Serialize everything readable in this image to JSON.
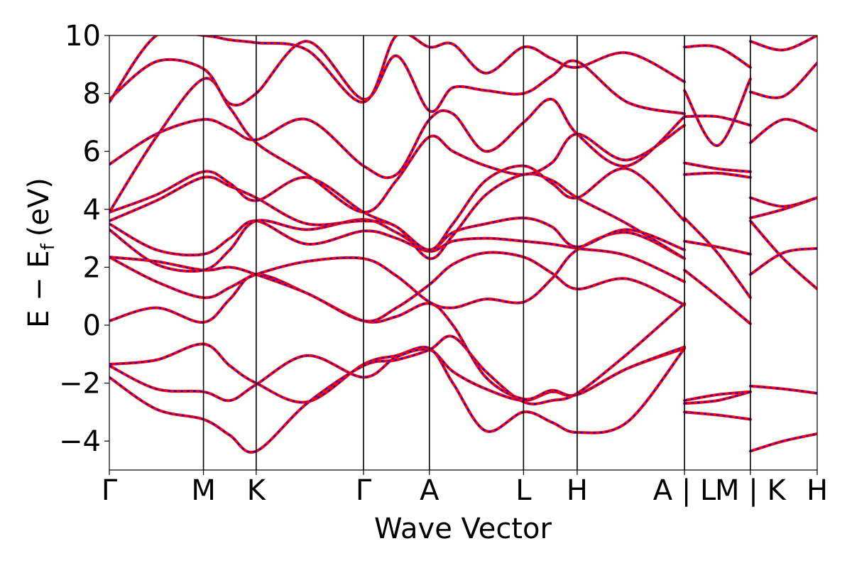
{
  "chart_data": {
    "type": "line",
    "title": "",
    "xlabel": "Wave Vector",
    "ylabel": "E − E",
    "ylabel_sub": "f",
    "ylabel_unit": "(eV)",
    "ylim": [
      -5,
      10
    ],
    "xlim": [
      0,
      7.52
    ],
    "yticks": [
      -4,
      -2,
      0,
      2,
      4,
      6,
      8,
      10
    ],
    "ytick_labels": [
      "−4",
      "−2",
      "0",
      "2",
      "4",
      "6",
      "8",
      "10"
    ],
    "kpath": [
      {
        "label": "Γ",
        "x": 0.0
      },
      {
        "label": "M",
        "x": 1.0
      },
      {
        "label": "K",
        "x": 1.56
      },
      {
        "label": "Γ",
        "x": 2.7
      },
      {
        "label": "A",
        "x": 3.4
      },
      {
        "label": "L",
        "x": 4.4
      },
      {
        "label": "H",
        "x": 4.97
      },
      {
        "label": "A | L",
        "x": 6.11
      },
      {
        "label": "M | K",
        "x": 6.81
      },
      {
        "label": "H",
        "x": 7.52
      }
    ],
    "grid": false,
    "legend": "none",
    "line_colors": {
      "primary": "#ff0000",
      "overlay": "#0000ff"
    },
    "series": [
      {
        "x": [
          0,
          0.5,
          1.0,
          1.28,
          1.56,
          2.1,
          2.7,
          3.05,
          3.4,
          3.65,
          4.0,
          4.4,
          4.7,
          4.97,
          5.5,
          6.11
        ],
        "values": [
          -1.35,
          -1.2,
          -0.65,
          -1.4,
          -2.0,
          -2.65,
          -1.35,
          -1.05,
          -0.8,
          -2.0,
          -3.65,
          -3.0,
          -3.35,
          -3.7,
          -3.35,
          -0.8
        ]
      },
      {
        "x": [
          0,
          0.5,
          1.0,
          1.28,
          1.56,
          2.1,
          2.7,
          3.05,
          3.4,
          3.65,
          4.0,
          4.4,
          4.7,
          4.97,
          5.5,
          6.11
        ],
        "values": [
          -1.4,
          -2.2,
          -2.3,
          -2.6,
          -2.05,
          -1.05,
          -1.8,
          -1.1,
          -0.85,
          -1.6,
          -2.2,
          -2.6,
          -2.3,
          -2.4,
          -1.5,
          -0.8
        ]
      },
      {
        "x": [
          0,
          0.5,
          1.0,
          1.28,
          1.56,
          2.1,
          2.7,
          3.05,
          3.4,
          3.65,
          4.0,
          4.4,
          4.7,
          4.97,
          5.5,
          6.11
        ],
        "values": [
          -1.8,
          -2.9,
          -3.25,
          -3.8,
          -4.35,
          -2.7,
          -1.4,
          -1.2,
          -0.85,
          -0.4,
          -1.6,
          -2.65,
          -2.6,
          -2.35,
          -1.0,
          0.75
        ]
      },
      {
        "x": [
          0,
          0.5,
          1.0,
          1.28,
          1.56,
          2.1,
          2.7,
          3.05,
          3.4,
          3.65,
          4.0,
          4.4,
          4.7,
          4.97,
          5.5,
          6.11
        ],
        "values": [
          0.15,
          0.6,
          0.1,
          0.9,
          1.75,
          1.1,
          0.15,
          0.3,
          0.75,
          0.0,
          -1.8,
          -2.55,
          -2.25,
          -2.4,
          -1.5,
          -0.75
        ]
      },
      {
        "x": [
          0,
          0.5,
          1.0,
          1.28,
          1.56,
          2.1,
          2.7,
          3.05,
          3.4,
          3.65,
          4.0,
          4.4,
          4.7,
          4.97,
          5.5,
          6.11
        ],
        "values": [
          2.35,
          1.5,
          0.95,
          1.3,
          1.75,
          2.2,
          2.3,
          1.7,
          0.8,
          0.6,
          0.9,
          0.8,
          1.6,
          2.6,
          3.2,
          2.3
        ]
      },
      {
        "x": [
          0,
          0.5,
          1.0,
          1.28,
          1.56,
          2.1,
          2.7,
          3.05,
          3.4,
          3.65,
          4.0,
          4.4,
          4.7,
          4.97,
          5.5,
          6.11
        ],
        "values": [
          2.35,
          2.2,
          1.9,
          2.0,
          1.75,
          1.1,
          0.15,
          0.6,
          1.4,
          2.1,
          2.5,
          2.35,
          1.8,
          1.25,
          1.6,
          0.7
        ]
      },
      {
        "x": [
          0,
          0.5,
          1.0,
          1.28,
          1.56,
          2.1,
          2.7,
          3.05,
          3.4,
          3.65,
          4.0,
          4.4,
          4.7,
          4.97,
          5.5,
          6.11
        ],
        "values": [
          3.5,
          2.6,
          2.45,
          3.0,
          3.6,
          2.8,
          3.25,
          3.0,
          2.55,
          2.9,
          3.0,
          2.9,
          2.8,
          2.65,
          2.4,
          1.5
        ]
      },
      {
        "x": [
          0,
          0.5,
          1.0,
          1.28,
          1.56,
          2.1,
          2.7,
          3.05,
          3.4,
          3.65,
          4.0,
          4.4,
          4.7,
          4.97,
          5.5,
          6.11
        ],
        "values": [
          3.3,
          2.1,
          1.9,
          2.6,
          3.6,
          3.3,
          3.65,
          3.2,
          2.6,
          3.2,
          3.5,
          3.7,
          3.4,
          2.7,
          3.3,
          2.6
        ]
      },
      {
        "x": [
          0,
          0.5,
          1.0,
          1.28,
          1.56,
          2.1,
          2.7,
          3.05,
          3.4,
          3.65,
          4.0,
          4.4,
          4.7,
          4.97,
          5.5,
          6.11
        ],
        "values": [
          3.6,
          4.3,
          5.1,
          4.8,
          4.4,
          3.5,
          3.6,
          3.4,
          2.3,
          3.1,
          4.5,
          5.2,
          5.0,
          4.4,
          3.5,
          2.3
        ]
      },
      {
        "x": [
          0,
          0.5,
          1.0,
          1.28,
          1.56,
          2.1,
          2.7,
          3.05,
          3.4,
          3.65,
          4.0,
          4.4,
          4.7,
          4.97,
          5.5,
          6.11
        ],
        "values": [
          3.9,
          4.5,
          5.3,
          4.9,
          4.3,
          5.1,
          3.9,
          3.4,
          2.6,
          3.5,
          5.0,
          5.5,
          4.9,
          4.4,
          5.4,
          3.6
        ]
      },
      {
        "x": [
          0,
          0.5,
          1.0,
          1.28,
          1.56,
          2.1,
          2.7,
          3.05,
          3.4,
          3.65,
          4.0,
          4.4,
          4.7,
          4.97,
          5.5,
          6.11
        ],
        "values": [
          3.9,
          6.5,
          8.5,
          7.5,
          6.3,
          5.2,
          3.9,
          5.0,
          6.5,
          6.0,
          5.5,
          5.2,
          5.6,
          6.6,
          5.7,
          6.9
        ]
      },
      {
        "x": [
          0,
          0.5,
          1.0,
          1.28,
          1.56,
          2.1,
          2.7,
          3.05,
          3.4,
          3.65,
          4.0,
          4.4,
          4.7,
          4.97,
          5.5,
          6.11
        ],
        "values": [
          5.55,
          6.6,
          7.1,
          6.8,
          6.4,
          7.1,
          5.5,
          5.2,
          7.1,
          7.3,
          6.0,
          7.0,
          7.8,
          6.6,
          5.5,
          7.2
        ]
      },
      {
        "x": [
          0,
          0.5,
          1.0,
          1.28,
          1.56,
          2.1,
          2.7,
          3.05,
          3.4,
          3.65,
          4.0,
          4.4,
          4.7,
          4.97,
          5.5,
          6.11
        ],
        "values": [
          7.8,
          9.1,
          8.85,
          7.65,
          8.0,
          9.8,
          7.8,
          9.3,
          7.4,
          8.2,
          8.1,
          8.0,
          8.6,
          9.1,
          7.7,
          7.3
        ]
      },
      {
        "x": [
          0,
          0.5,
          1.0,
          1.28,
          1.56,
          2.1,
          2.7,
          3.05,
          3.4,
          3.65,
          4.0,
          4.4,
          4.7,
          4.97,
          5.5,
          6.11
        ],
        "values": [
          7.7,
          10.0,
          10.0,
          9.85,
          9.75,
          9.5,
          7.7,
          10.0,
          9.6,
          9.7,
          8.7,
          9.6,
          9.2,
          8.9,
          9.4,
          8.4
        ]
      },
      {
        "x": [
          6.11,
          6.46,
          6.81
        ],
        "values": [
          -2.6,
          -2.4,
          -2.3
        ]
      },
      {
        "x": [
          6.11,
          6.46,
          6.81
        ],
        "values": [
          -2.7,
          -2.6,
          -2.3
        ]
      },
      {
        "x": [
          6.11,
          6.46,
          6.81
        ],
        "values": [
          -3.0,
          -3.1,
          -3.25
        ]
      },
      {
        "x": [
          6.11,
          6.46,
          6.81
        ],
        "values": [
          1.9,
          1.0,
          0.05
        ]
      },
      {
        "x": [
          6.11,
          6.46,
          6.81
        ],
        "values": [
          2.9,
          2.7,
          2.45
        ]
      },
      {
        "x": [
          6.11,
          6.46,
          6.81
        ],
        "values": [
          3.7,
          2.5,
          0.95
        ]
      },
      {
        "x": [
          6.11,
          6.46,
          6.81
        ],
        "values": [
          5.2,
          5.25,
          5.1
        ]
      },
      {
        "x": [
          6.11,
          6.46,
          6.81
        ],
        "values": [
          5.6,
          5.4,
          5.3
        ]
      },
      {
        "x": [
          6.11,
          6.46,
          6.81
        ],
        "values": [
          7.2,
          7.2,
          6.9
        ]
      },
      {
        "x": [
          6.11,
          6.46,
          6.81
        ],
        "values": [
          8.1,
          6.2,
          8.5
        ]
      },
      {
        "x": [
          6.11,
          6.46,
          6.81
        ],
        "values": [
          9.6,
          9.6,
          8.9
        ]
      },
      {
        "x": [
          6.81,
          7.16,
          7.52
        ],
        "values": [
          -4.35,
          -4.0,
          -3.75
        ]
      },
      {
        "x": [
          6.81,
          7.16,
          7.52
        ],
        "values": [
          -2.1,
          -2.2,
          -2.35
        ]
      },
      {
        "x": [
          6.81,
          7.16,
          7.52
        ],
        "values": [
          1.75,
          2.5,
          2.65
        ]
      },
      {
        "x": [
          6.81,
          7.16,
          7.52
        ],
        "values": [
          3.6,
          2.3,
          1.25
        ]
      },
      {
        "x": [
          6.81,
          7.16,
          7.52
        ],
        "values": [
          3.7,
          4.0,
          4.4
        ]
      },
      {
        "x": [
          6.81,
          7.16,
          7.52
        ],
        "values": [
          4.4,
          4.1,
          4.4
        ]
      },
      {
        "x": [
          6.81,
          7.16,
          7.52
        ],
        "values": [
          6.3,
          7.1,
          6.7
        ]
      },
      {
        "x": [
          6.81,
          7.16,
          7.52
        ],
        "values": [
          8.05,
          7.9,
          9.05
        ]
      },
      {
        "x": [
          6.81,
          7.16,
          7.52
        ],
        "values": [
          9.8,
          9.5,
          10.0
        ]
      }
    ]
  }
}
